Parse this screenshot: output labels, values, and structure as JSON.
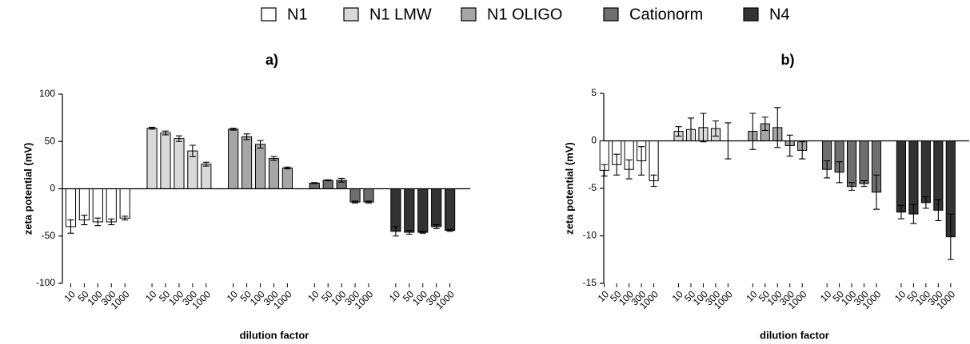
{
  "chart_data": [
    {
      "type": "bar",
      "title": "a)",
      "xlabel": "dilution factor",
      "ylabel": "zeta potential (mV)",
      "categories": [
        "10",
        "50",
        "100",
        "300",
        "1000"
      ],
      "ylim": [
        -100,
        100
      ],
      "yticks": [
        -100,
        -50,
        0,
        50,
        100
      ],
      "series": [
        {
          "name": "N1",
          "color": "#ffffff",
          "values": [
            -40,
            -33,
            -35,
            -35,
            -31
          ],
          "errors": [
            7,
            5,
            4,
            3,
            2
          ]
        },
        {
          "name": "N1 LMW",
          "color": "#d9d9d9",
          "values": [
            64,
            59,
            53,
            40,
            26
          ],
          "errors": [
            1,
            2,
            3,
            6,
            2
          ]
        },
        {
          "name": "N1 OLIGO",
          "color": "#a6a6a6",
          "values": [
            63,
            55,
            47,
            32,
            22
          ],
          "errors": [
            1,
            3,
            4,
            2,
            1
          ]
        },
        {
          "name": "Cationorm",
          "color": "#6e6e6e",
          "values": [
            6,
            9,
            9,
            -14,
            -14
          ],
          "errors": [
            0.5,
            0.5,
            2,
            1,
            1
          ]
        },
        {
          "name": "N4",
          "color": "#333333",
          "values": [
            -45,
            -46,
            -46,
            -40,
            -44
          ],
          "errors": [
            5,
            2,
            1,
            2,
            1
          ]
        }
      ]
    },
    {
      "type": "bar",
      "title": "b)",
      "xlabel": "dilution factor",
      "ylabel": "zeta potential (mV)",
      "categories": [
        "10",
        "50",
        "100",
        "300",
        "1000"
      ],
      "ylim": [
        -15,
        5
      ],
      "yticks": [
        -15,
        -10,
        -5,
        0,
        5
      ],
      "series": [
        {
          "color": "#ffffff",
          "values": [
            -3.1,
            -2.5,
            -3.0,
            -2.1,
            -4.2
          ],
          "errors": [
            0.6,
            1.1,
            1.0,
            1.5,
            0.6
          ]
        },
        {
          "color": "#d9d9d9",
          "values": [
            1.0,
            1.2,
            1.4,
            1.3,
            0
          ],
          "errors": [
            0.5,
            1.2,
            1.5,
            0.8,
            1.9
          ]
        },
        {
          "color": "#a6a6a6",
          "values": [
            1.0,
            1.8,
            1.4,
            -0.5,
            -1.0
          ],
          "errors": [
            1.9,
            0.7,
            2.1,
            1.1,
            0.9
          ]
        },
        {
          "color": "#6e6e6e",
          "values": [
            -3.0,
            -3.3,
            -4.8,
            -4.5,
            -5.4
          ],
          "errors": [
            0.9,
            1.1,
            0.4,
            0.3,
            1.8
          ]
        },
        {
          "color": "#333333",
          "values": [
            -7.5,
            -7.7,
            -6.5,
            -7.3,
            -10.1
          ],
          "errors": [
            0.7,
            1.0,
            0.6,
            1.1,
            2.4
          ]
        }
      ]
    }
  ]
}
